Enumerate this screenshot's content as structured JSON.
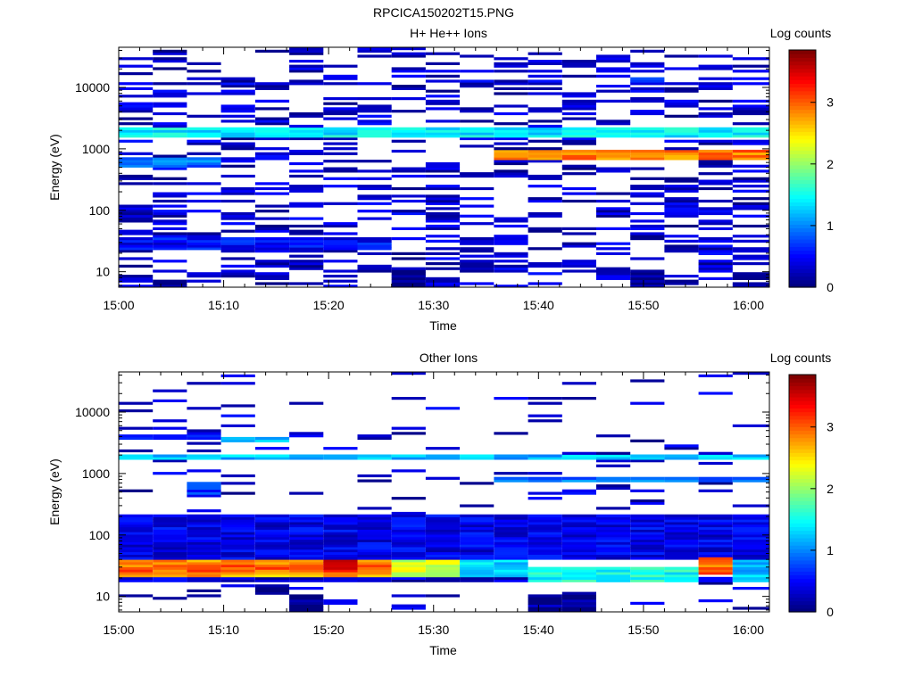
{
  "figure_title": "RPCICA150202T15.PNG",
  "chart_data": [
    {
      "type": "heatmap",
      "title": "H+ He++ Ions",
      "xlabel": "Time",
      "ylabel": "Energy (eV)",
      "x_ticks": [
        "15:00",
        "15:10",
        "15:20",
        "15:30",
        "15:40",
        "15:50",
        "16:00"
      ],
      "x_tick_minutes": [
        0,
        10,
        20,
        30,
        40,
        50,
        60
      ],
      "xlim_minutes": [
        0,
        62
      ],
      "y_ticks": [
        "10",
        "100",
        "1000",
        "10000"
      ],
      "y_tick_values": [
        10,
        100,
        1000,
        10000
      ],
      "yscale": "log",
      "ylim": [
        5.6,
        45000
      ],
      "colorbar": {
        "label": "Log counts",
        "ticks": [
          "0",
          "1",
          "2",
          "3"
        ],
        "range": [
          0,
          3.85
        ]
      },
      "time_bins_minutes": [
        0,
        3.25,
        6.5,
        9.75,
        13,
        16.25,
        19.5,
        22.75,
        26,
        29.25,
        32.5,
        35.75,
        39,
        42.25,
        45.5,
        48.75,
        52,
        55.25,
        58.5,
        62
      ],
      "seed": 17,
      "fill": [
        0.34,
        0.34,
        0.32,
        0.36,
        0.34,
        0.36,
        0.3,
        0.32,
        0.32,
        0.4,
        0.34,
        0.32,
        0.32,
        0.4,
        0.34,
        0.34,
        0.36,
        0.36,
        0.36
      ],
      "bands": [
        {
          "from_bin": 0,
          "to_bin": 18,
          "e_low": 1600,
          "e_high": 2300,
          "level": 1.4
        },
        {
          "from_bin": 11,
          "to_bin": 18,
          "e_low": 650,
          "e_high": 1000,
          "level": 2.9
        },
        {
          "from_bin": 0,
          "to_bin": 2,
          "e_low": 480,
          "e_high": 700,
          "level": 0.9
        },
        {
          "from_bin": 0,
          "to_bin": 7,
          "e_low": 22,
          "e_high": 35,
          "level": 0.5
        },
        {
          "from_bin": 8,
          "to_bin": 8,
          "e_low": 5.6,
          "e_high": 10.5,
          "level": 0.05
        },
        {
          "from_bin": 10,
          "to_bin": 10,
          "e_low": 11,
          "e_high": 15,
          "level": 0.2
        },
        {
          "from_bin": 15,
          "to_bin": 15,
          "e_low": 5.6,
          "e_high": 10.5,
          "level": 0.05
        },
        {
          "from_bin": 16,
          "to_bin": 16,
          "e_low": 80,
          "e_high": 130,
          "level": 0.5
        },
        {
          "from_bin": 15,
          "to_bin": 15,
          "e_low": 12000,
          "e_high": 14000,
          "level": 0.8
        }
      ]
    },
    {
      "type": "heatmap",
      "title": "Other Ions",
      "xlabel": "Time",
      "ylabel": "Energy (eV)",
      "x_ticks": [
        "15:00",
        "15:10",
        "15:20",
        "15:30",
        "15:40",
        "15:50",
        "16:00"
      ],
      "x_tick_minutes": [
        0,
        10,
        20,
        30,
        40,
        50,
        60
      ],
      "xlim_minutes": [
        0,
        62
      ],
      "y_ticks": [
        "10",
        "100",
        "1000",
        "10000"
      ],
      "y_tick_values": [
        10,
        100,
        1000,
        10000
      ],
      "yscale": "log",
      "ylim": [
        5.6,
        45000
      ],
      "colorbar": {
        "label": "Log counts",
        "ticks": [
          "0",
          "1",
          "2",
          "3"
        ],
        "range": [
          0,
          3.85
        ]
      },
      "time_bins_minutes": [
        0,
        3.25,
        6.5,
        9.75,
        13,
        16.25,
        19.5,
        22.75,
        26,
        29.25,
        32.5,
        35.75,
        39,
        42.25,
        45.5,
        48.75,
        52,
        55.25,
        58.5,
        62
      ],
      "seed": 41,
      "fill": [
        0.1,
        0.1,
        0.14,
        0.1,
        0.08,
        0.08,
        0.06,
        0.06,
        0.08,
        0.06,
        0.06,
        0.06,
        0.1,
        0.08,
        0.08,
        0.06,
        0.06,
        0.1,
        0.12
      ],
      "bands": [
        {
          "from_bin": 0,
          "to_bin": 18,
          "e_low": 1750,
          "e_high": 2050,
          "level": 1.2
        },
        {
          "from_bin": 0,
          "to_bin": 2,
          "e_low": 3500,
          "e_high": 4200,
          "level": 0.5
        },
        {
          "from_bin": 3,
          "to_bin": 4,
          "e_low": 3400,
          "e_high": 3800,
          "level": 1.2
        },
        {
          "from_bin": 0,
          "to_bin": 7,
          "e_low": 33,
          "e_high": 40,
          "level": 2.8
        },
        {
          "from_bin": 0,
          "to_bin": 7,
          "e_low": 26,
          "e_high": 33,
          "level": 3.0
        },
        {
          "from_bin": 0,
          "to_bin": 7,
          "e_low": 20,
          "e_high": 26,
          "level": 2.7
        },
        {
          "from_bin": 0,
          "to_bin": 17,
          "e_low": 16.5,
          "e_high": 20,
          "level": 0.3
        },
        {
          "from_bin": 6,
          "to_bin": 6,
          "e_low": 26,
          "e_high": 40,
          "level": 3.4
        },
        {
          "from_bin": 8,
          "to_bin": 9,
          "e_low": 20,
          "e_high": 40,
          "level": 2.2
        },
        {
          "from_bin": 10,
          "to_bin": 11,
          "e_low": 20,
          "e_high": 40,
          "level": 1.3
        },
        {
          "from_bin": 12,
          "to_bin": 16,
          "e_low": 17,
          "e_high": 30,
          "level": 1.5
        },
        {
          "from_bin": 17,
          "to_bin": 17,
          "e_low": 22,
          "e_high": 45,
          "level": 3.0
        },
        {
          "from_bin": 18,
          "to_bin": 18,
          "e_low": 18,
          "e_high": 40,
          "level": 1.2
        },
        {
          "from_bin": 0,
          "to_bin": 18,
          "e_low": 40,
          "e_high": 220,
          "level": 0.4
        },
        {
          "from_bin": 2,
          "to_bin": 2,
          "e_low": 420,
          "e_high": 720,
          "level": 0.6
        },
        {
          "from_bin": 11,
          "to_bin": 18,
          "e_low": 760,
          "e_high": 880,
          "level": 0.9
        },
        {
          "from_bin": 13,
          "to_bin": 13,
          "e_low": 450,
          "e_high": 560,
          "level": 0.5
        },
        {
          "from_bin": 4,
          "to_bin": 4,
          "e_low": 11,
          "e_high": 15,
          "level": 0.1
        },
        {
          "from_bin": 5,
          "to_bin": 5,
          "e_low": 5.6,
          "e_high": 10.5,
          "level": 0.05
        },
        {
          "from_bin": 12,
          "to_bin": 13,
          "e_low": 5.6,
          "e_high": 10.5,
          "level": 0.1
        }
      ]
    }
  ]
}
